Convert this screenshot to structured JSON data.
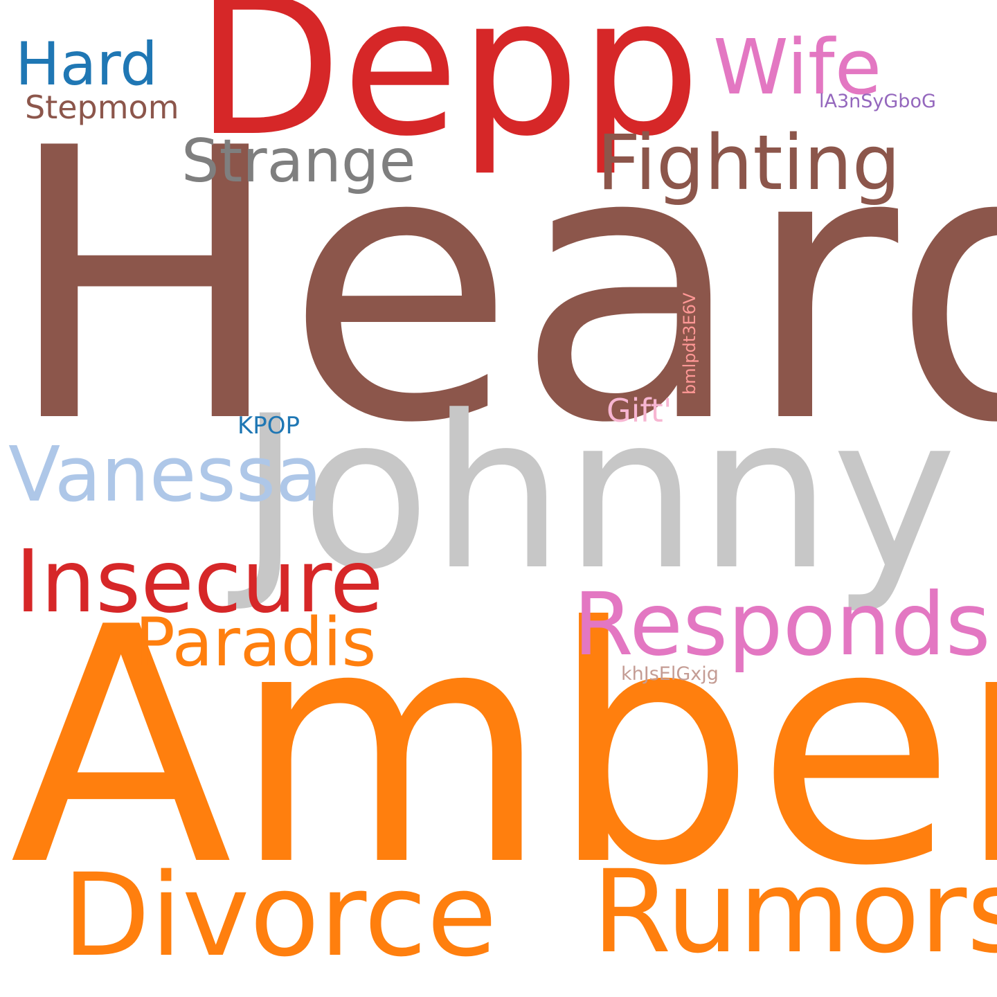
{
  "word_cloud": {
    "words": [
      {
        "key": "heard",
        "text": "Heard",
        "color": "#8c564b"
      },
      {
        "key": "amber",
        "text": "Amber",
        "color": "#ff7f0e"
      },
      {
        "key": "johnny",
        "text": "Johnny",
        "color": "#c7c7c7"
      },
      {
        "key": "depp",
        "text": "Depp",
        "color": "#d62728"
      },
      {
        "key": "divorce",
        "text": "Divorce",
        "color": "#ff7f0e"
      },
      {
        "key": "rumors",
        "text": "Rumors",
        "color": "#ff7f0e"
      },
      {
        "key": "responds",
        "text": "Responds",
        "color": "#e377c2"
      },
      {
        "key": "insecure",
        "text": "Insecure",
        "color": "#d62728"
      },
      {
        "key": "fighting",
        "text": "Fighting",
        "color": "#8c564b"
      },
      {
        "key": "vanessa",
        "text": "Vanessa",
        "color": "#aec7e8"
      },
      {
        "key": "paradis",
        "text": "Paradis",
        "color": "#ff7f0e"
      },
      {
        "key": "wife",
        "text": "Wife",
        "color": "#e377c2"
      },
      {
        "key": "strange",
        "text": "Strange",
        "color": "#7f7f7f"
      },
      {
        "key": "hard",
        "text": "Hard",
        "color": "#1f77b4"
      },
      {
        "key": "stepmom",
        "text": "Stepmom",
        "color": "#8c564b"
      },
      {
        "key": "gift",
        "text": "Gift'",
        "color": "#f7b6d2"
      },
      {
        "key": "kpop",
        "text": "KPOP",
        "color": "#1f77b4"
      },
      {
        "key": "code1",
        "text": "lA3nSyGboG",
        "color": "#9467bd"
      },
      {
        "key": "code2",
        "text": "bmlpdt3E6V",
        "color": "#ff9896"
      },
      {
        "key": "code3",
        "text": "khJsElGxjg",
        "color": "#c49c94"
      }
    ]
  }
}
